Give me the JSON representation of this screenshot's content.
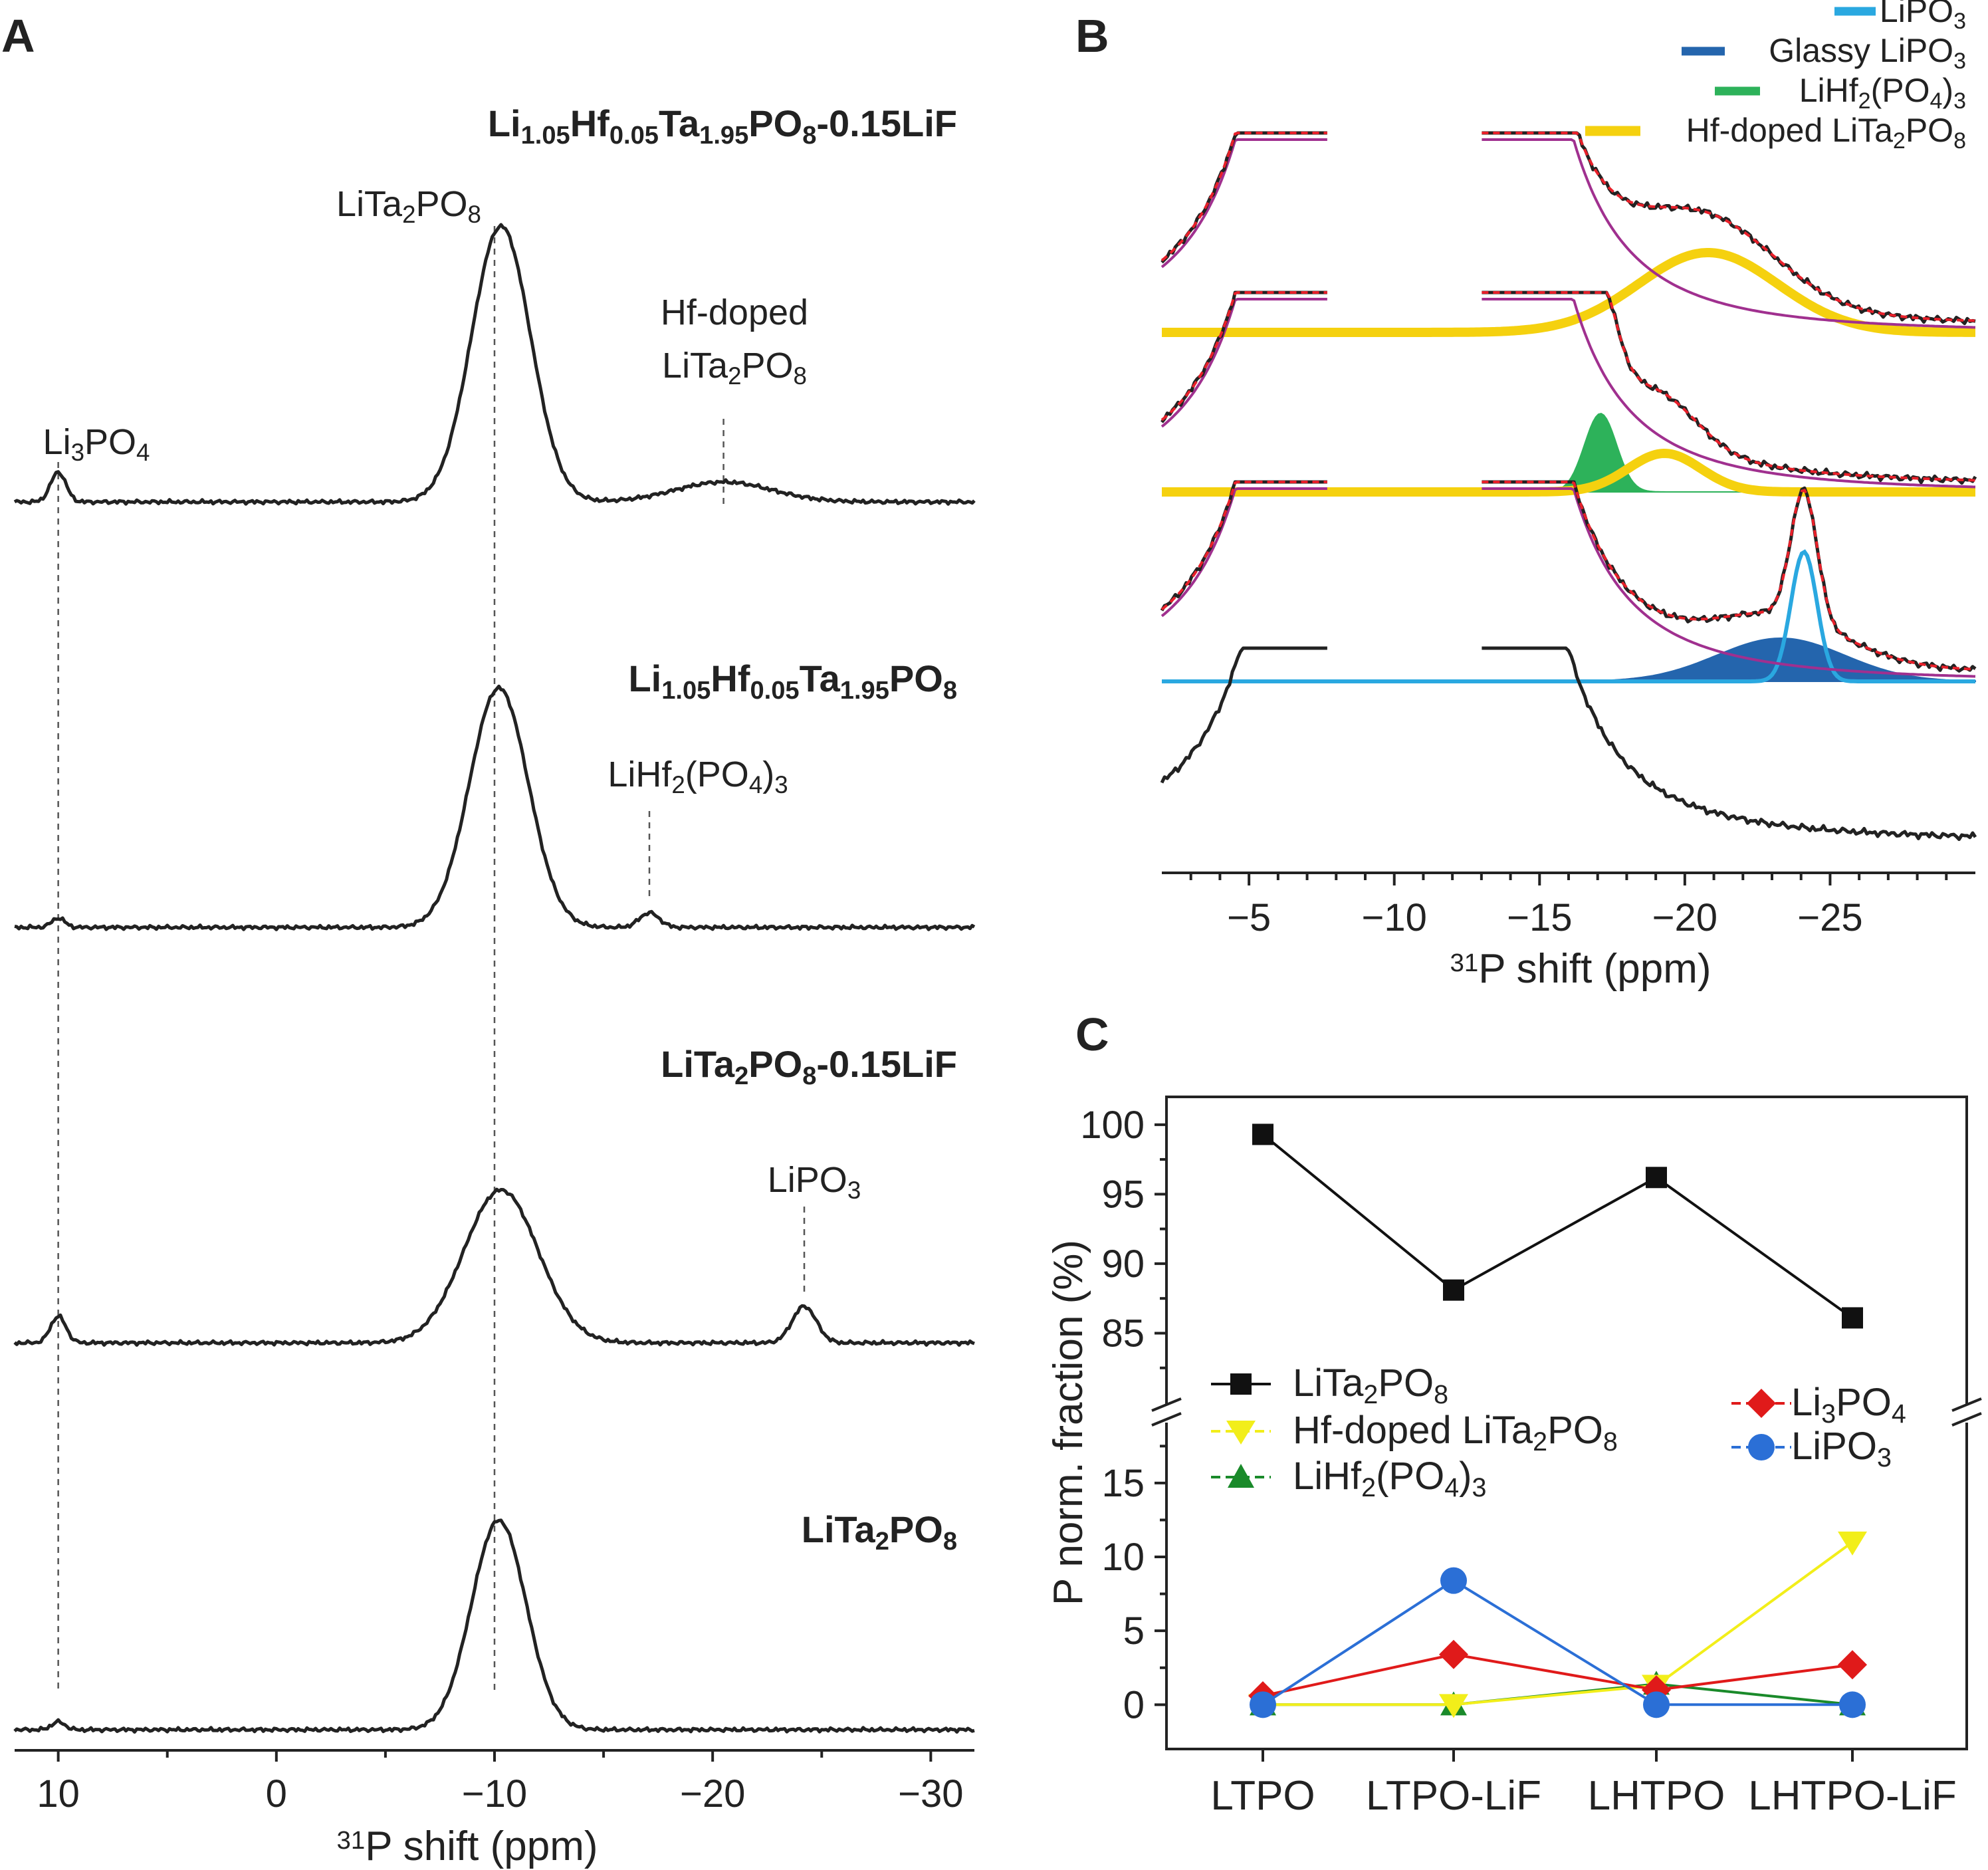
{
  "panel_labels": {
    "a": "A",
    "b": "B",
    "c": "C"
  },
  "colors": {
    "black": "#222222",
    "fit_total": "#e8202a",
    "background_fit": "#a0308f",
    "LiPO3": "#2aa8e0",
    "glassy_LiPO3": "#2465ad",
    "LiHf2PO43": "#2db25a",
    "hf_doped": "#f5d10f",
    "c_LiTa2PO8": "#111111",
    "c_hf_doped": "#f2ee1a",
    "c_LiHf2PO43": "#1a8a2a",
    "c_Li3PO4": "#e01a1a",
    "c_LiPO3": "#2b6fd6"
  },
  "panel_a": {
    "samples": [
      {
        "name": "Li1.05Hf0.05Ta1.95PO8-0.15LiF",
        "parts": [
          {
            "t": "Li"
          },
          {
            "t": "1.05",
            "s": "sub"
          },
          {
            "t": "Hf"
          },
          {
            "t": "0.05",
            "s": "sub"
          },
          {
            "t": "Ta"
          },
          {
            "t": "1.95",
            "s": "sub"
          },
          {
            "t": "PO"
          },
          {
            "t": "8",
            "s": "sub"
          },
          {
            "t": "-0.15LiF"
          }
        ]
      },
      {
        "name": "Li1.05Hf0.05Ta1.95PO8",
        "parts": [
          {
            "t": "Li"
          },
          {
            "t": "1.05",
            "s": "sub"
          },
          {
            "t": "Hf"
          },
          {
            "t": "0.05",
            "s": "sub"
          },
          {
            "t": "Ta"
          },
          {
            "t": "1.95",
            "s": "sub"
          },
          {
            "t": "PO"
          },
          {
            "t": "8",
            "s": "sub"
          }
        ]
      },
      {
        "name": "LiTa2PO8-0.15LiF",
        "parts": [
          {
            "t": "LiTa"
          },
          {
            "t": "2",
            "s": "sub"
          },
          {
            "t": "PO"
          },
          {
            "t": "8",
            "s": "sub"
          },
          {
            "t": "-0.15LiF"
          }
        ]
      },
      {
        "name": "LiTa2PO8",
        "parts": [
          {
            "t": "LiTa"
          },
          {
            "t": "2",
            "s": "sub"
          },
          {
            "t": "PO"
          },
          {
            "t": "8",
            "s": "sub"
          }
        ]
      }
    ],
    "annotations": {
      "LiTa2PO8": [
        {
          "t": "LiTa"
        },
        {
          "t": "2",
          "s": "sub"
        },
        {
          "t": "PO"
        },
        {
          "t": "8",
          "s": "sub"
        }
      ],
      "hf_line1": [
        {
          "t": "Hf-doped"
        }
      ],
      "hf_line2": [
        {
          "t": "LiTa"
        },
        {
          "t": "2",
          "s": "sub"
        },
        {
          "t": "PO"
        },
        {
          "t": "8",
          "s": "sub"
        }
      ],
      "Li3PO4": [
        {
          "t": "Li"
        },
        {
          "t": "3",
          "s": "sub"
        },
        {
          "t": "PO"
        },
        {
          "t": "4",
          "s": "sub"
        }
      ],
      "LiHf2PO43": [
        {
          "t": "LiHf"
        },
        {
          "t": "2",
          "s": "sub"
        },
        {
          "t": "(PO"
        },
        {
          "t": "4",
          "s": "sub"
        },
        {
          "t": ")"
        },
        {
          "t": "3",
          "s": "sub"
        }
      ],
      "LiPO3": [
        {
          "t": "LiPO"
        },
        {
          "t": "3",
          "s": "sub"
        }
      ]
    },
    "xaxis": {
      "label": [
        {
          "t": "31",
          "s": "sup"
        },
        {
          "t": "P shift (ppm)"
        }
      ],
      "ticks": [
        10,
        0,
        -10,
        -20,
        -30
      ],
      "tick_labels": [
        "10",
        "0",
        "−10",
        "−20",
        "−30"
      ],
      "range": [
        12,
        -32
      ]
    }
  },
  "panel_b": {
    "legend": [
      {
        "key": "LiPO3",
        "parts": [
          {
            "t": "LiPO"
          },
          {
            "t": "3",
            "s": "sub"
          }
        ]
      },
      {
        "key": "glassy_LiPO3",
        "parts": [
          {
            "t": "Glassy LiPO"
          },
          {
            "t": "3",
            "s": "sub"
          }
        ]
      },
      {
        "key": "LiHf2PO43",
        "parts": [
          {
            "t": "LiHf"
          },
          {
            "t": "2",
            "s": "sub"
          },
          {
            "t": "(PO"
          },
          {
            "t": "4",
            "s": "sub"
          },
          {
            "t": ")"
          },
          {
            "t": "3",
            "s": "sub"
          }
        ]
      },
      {
        "key": "hf_doped",
        "parts": [
          {
            "t": "Hf-doped LiTa"
          },
          {
            "t": "2",
            "s": "sub"
          },
          {
            "t": "PO"
          },
          {
            "t": "8",
            "s": "sub"
          }
        ]
      }
    ],
    "xaxis": {
      "label": [
        {
          "t": "31",
          "s": "sup"
        },
        {
          "t": "P shift (ppm)"
        }
      ],
      "ticks": [
        -5,
        -10,
        -15,
        -20,
        -25
      ],
      "tick_labels": [
        "−5",
        "−10",
        "−15",
        "−20",
        "−25"
      ],
      "range": [
        -2,
        -30
      ]
    }
  },
  "chart_data": {
    "type": "line",
    "title": "",
    "xlabel": "",
    "ylabel": "P norm. fraction (%)",
    "categories": [
      "LTPO",
      "LTPO-LiF",
      "LHTPO",
      "LHTPO-LiF"
    ],
    "ylim_upper": [
      80,
      102
    ],
    "ylim_lower": [
      -3,
      19
    ],
    "yticks_upper": [
      85,
      90,
      95,
      100
    ],
    "yticks_lower": [
      0,
      5,
      10,
      15
    ],
    "series": [
      {
        "name": "LiTa2PO8",
        "color": "#111111",
        "marker": "square",
        "legend": [
          {
            "t": "LiTa"
          },
          {
            "t": "2",
            "s": "sub"
          },
          {
            "t": "PO"
          },
          {
            "t": "8",
            "s": "sub"
          }
        ],
        "values": [
          99.3,
          88.1,
          96.2,
          86.1
        ]
      },
      {
        "name": "Hf-doped LiTa2PO8",
        "color": "#f2ee1a",
        "marker": "triangle-down",
        "legend": [
          {
            "t": "Hf-doped LiTa"
          },
          {
            "t": "2",
            "s": "sub"
          },
          {
            "t": "PO"
          },
          {
            "t": "8",
            "s": "sub"
          }
        ],
        "values": [
          0,
          0,
          1.3,
          11
        ]
      },
      {
        "name": "LiHf2(PO4)3",
        "color": "#1a8a2a",
        "marker": "triangle-up",
        "legend": [
          {
            "t": "LiHf"
          },
          {
            "t": "2",
            "s": "sub"
          },
          {
            "t": "(PO"
          },
          {
            "t": "4",
            "s": "sub"
          },
          {
            "t": ")"
          },
          {
            "t": "3",
            "s": "sub"
          }
        ],
        "values": [
          0,
          0,
          1.4,
          0
        ]
      },
      {
        "name": "Li3PO4",
        "color": "#e01a1a",
        "marker": "diamond",
        "legend": [
          {
            "t": "Li"
          },
          {
            "t": "3",
            "s": "sub"
          },
          {
            "t": "PO"
          },
          {
            "t": "4",
            "s": "sub"
          }
        ],
        "values": [
          0.6,
          3.4,
          1.0,
          2.7
        ]
      },
      {
        "name": "LiPO3",
        "color": "#2b6fd6",
        "marker": "circle",
        "legend": [
          {
            "t": "LiPO"
          },
          {
            "t": "3",
            "s": "sub"
          }
        ],
        "values": [
          0,
          8.4,
          0,
          0
        ]
      }
    ]
  }
}
